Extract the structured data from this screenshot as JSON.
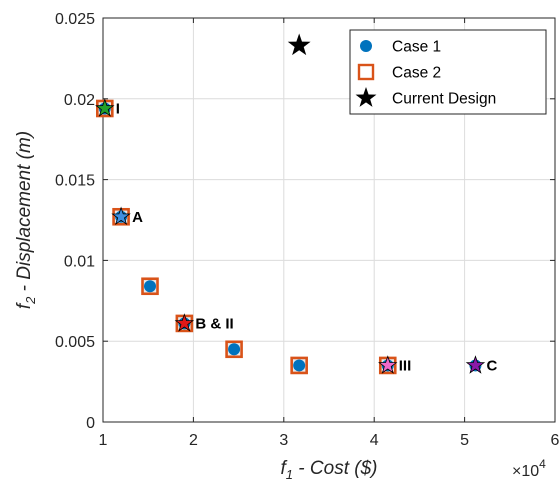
{
  "chart_data": {
    "type": "scatter",
    "title": "",
    "xlabel": {
      "f": "f",
      "sub": "1",
      "rest": " - Cost ($)"
    },
    "ylabel": {
      "f": "f",
      "sub": "2",
      "rest": " - Displacement (m)"
    },
    "x_exponent": {
      "base": "×10",
      "power": "4"
    },
    "xlim": [
      1,
      6
    ],
    "ylim": [
      0,
      0.025
    ],
    "xticks": [
      1,
      2,
      3,
      4,
      5,
      6
    ],
    "xtick_labels": [
      "1",
      "2",
      "3",
      "4",
      "5",
      "6"
    ],
    "yticks": [
      0,
      0.005,
      0.01,
      0.015,
      0.02,
      0.025
    ],
    "ytick_labels": [
      "0",
      "0.005",
      "0.01",
      "0.015",
      "0.02",
      "0.025"
    ],
    "grid": true,
    "legend_position": "top-right",
    "series": [
      {
        "name": "Case 1",
        "marker": "circle",
        "color": "#0072BD",
        "points": [
          {
            "x": 1.02,
            "y": 0.0194
          },
          {
            "x": 1.2,
            "y": 0.0127
          },
          {
            "x": 1.52,
            "y": 0.0084
          },
          {
            "x": 1.9,
            "y": 0.0061
          },
          {
            "x": 2.45,
            "y": 0.0045
          },
          {
            "x": 3.17,
            "y": 0.0035
          },
          {
            "x": 4.15,
            "y": 0.0035
          },
          {
            "x": 5.12,
            "y": 0.0035
          }
        ]
      },
      {
        "name": "Case 2",
        "marker": "square",
        "color": "#D95319",
        "points": [
          {
            "x": 1.02,
            "y": 0.0194
          },
          {
            "x": 1.2,
            "y": 0.0127
          },
          {
            "x": 1.52,
            "y": 0.0084
          },
          {
            "x": 1.9,
            "y": 0.0061
          },
          {
            "x": 2.45,
            "y": 0.0045
          },
          {
            "x": 3.17,
            "y": 0.0035
          },
          {
            "x": 4.15,
            "y": 0.0035
          }
        ]
      },
      {
        "name": "Current Design",
        "marker": "star",
        "color": "#000000",
        "points": [
          {
            "x": 3.17,
            "y": 0.0233
          }
        ]
      }
    ],
    "highlights": [
      {
        "label": "I",
        "x": 1.02,
        "y": 0.0194,
        "color": "#22A02A"
      },
      {
        "label": "A",
        "x": 1.2,
        "y": 0.0127,
        "color": "#3F8FE0"
      },
      {
        "label": "B & II",
        "x": 1.9,
        "y": 0.0061,
        "color": "#E01818"
      },
      {
        "label": "III",
        "x": 4.15,
        "y": 0.0035,
        "color": "#F06ACB"
      },
      {
        "label": "C",
        "x": 5.12,
        "y": 0.0035,
        "color": "#8A1BA8"
      }
    ]
  }
}
